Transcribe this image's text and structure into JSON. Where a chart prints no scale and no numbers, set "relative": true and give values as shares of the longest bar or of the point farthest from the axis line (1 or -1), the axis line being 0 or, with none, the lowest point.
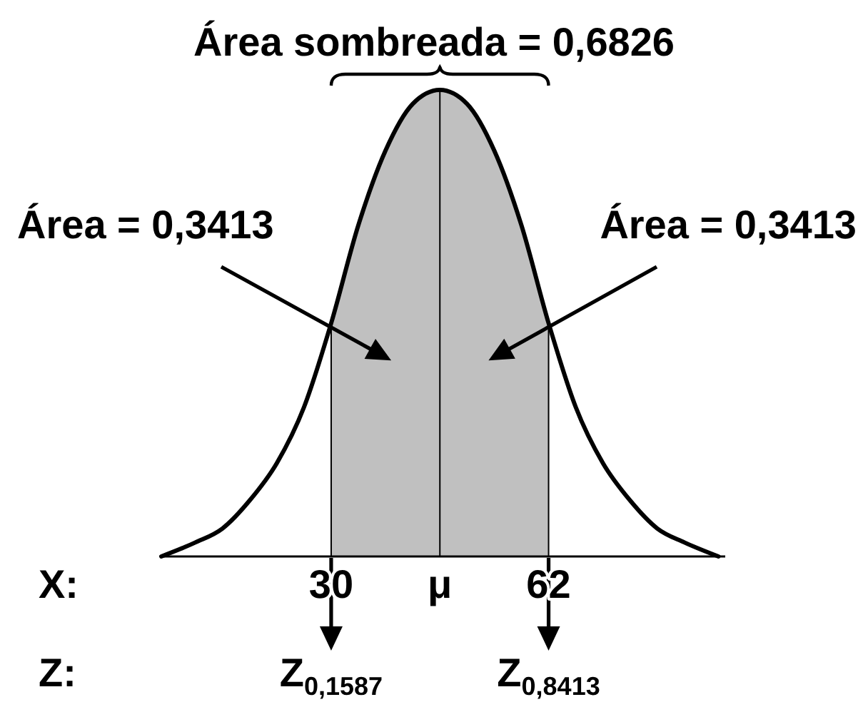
{
  "chart_data": {
    "type": "line",
    "relative": true,
    "title": "Área sombreada = 0,6826",
    "xlabel": "X:",
    "xlim": [
      5,
      88
    ],
    "xticks": [
      30,
      {
        "value": 46,
        "label": "μ"
      },
      62
    ],
    "series": [
      {
        "type": "area",
        "color": "#c0c0c0",
        "x": [
          30,
          34,
          38,
          42,
          46,
          50,
          54,
          58,
          62
        ],
        "values": [
          0.5,
          0.71,
          0.87,
          0.97,
          1,
          0.97,
          0.87,
          0.71,
          0.5
        ]
      },
      {
        "color": "#000000",
        "x": [
          5,
          10,
          14,
          18,
          22,
          26,
          30,
          34,
          38,
          42,
          46,
          50,
          54,
          58,
          62,
          66,
          70,
          74,
          78,
          82,
          87
        ],
        "values": [
          0,
          0.03,
          0.06,
          0.12,
          0.2,
          0.32,
          0.5,
          0.71,
          0.87,
          0.97,
          1,
          0.97,
          0.87,
          0.71,
          0.5,
          0.32,
          0.2,
          0.12,
          0.06,
          0.03,
          0
        ]
      }
    ],
    "ref_lines": [
      {
        "axis": "x",
        "value": 46,
        "color": "#000000"
      }
    ],
    "annotations": [
      "Área = 0,3413",
      "Área = 0,3413",
      "Z:",
      "Z$_{0,1587}$",
      "Z$_{0,8413}$"
    ]
  }
}
